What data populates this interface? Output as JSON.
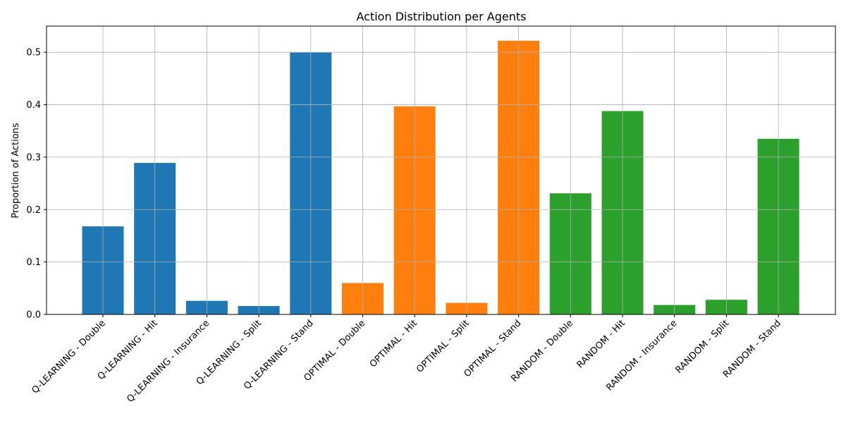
{
  "chart_data": {
    "type": "bar",
    "title": "Action Distribution per Agents",
    "xlabel": "",
    "ylabel": "Proportion of Actions",
    "ylim": [
      0,
      0.55
    ],
    "yticks": [
      "0.0",
      "0.1",
      "0.2",
      "0.3",
      "0.4",
      "0.5"
    ],
    "grid": true,
    "categories": [
      "Q-LEARNING - Double",
      "Q-LEARNING - Hit",
      "Q-LEARNING - Insurance",
      "Q-LEARNING - Split",
      "Q-LEARNING - Stand",
      "OPTIMAL - Double",
      "OPTIMAL - Hit",
      "OPTIMAL - Split",
      "OPTIMAL - Stand",
      "RANDOM - Double",
      "RANDOM - Hit",
      "RANDOM - Insurance",
      "RANDOM - Split",
      "RANDOM - Stand"
    ],
    "values": [
      0.168,
      0.289,
      0.026,
      0.016,
      0.5,
      0.06,
      0.397,
      0.022,
      0.522,
      0.231,
      0.388,
      0.018,
      0.028,
      0.335
    ],
    "colors": [
      "#1f77b4",
      "#1f77b4",
      "#1f77b4",
      "#1f77b4",
      "#1f77b4",
      "#ff7f0e",
      "#ff7f0e",
      "#ff7f0e",
      "#ff7f0e",
      "#2ca02c",
      "#2ca02c",
      "#2ca02c",
      "#2ca02c",
      "#2ca02c"
    ]
  }
}
